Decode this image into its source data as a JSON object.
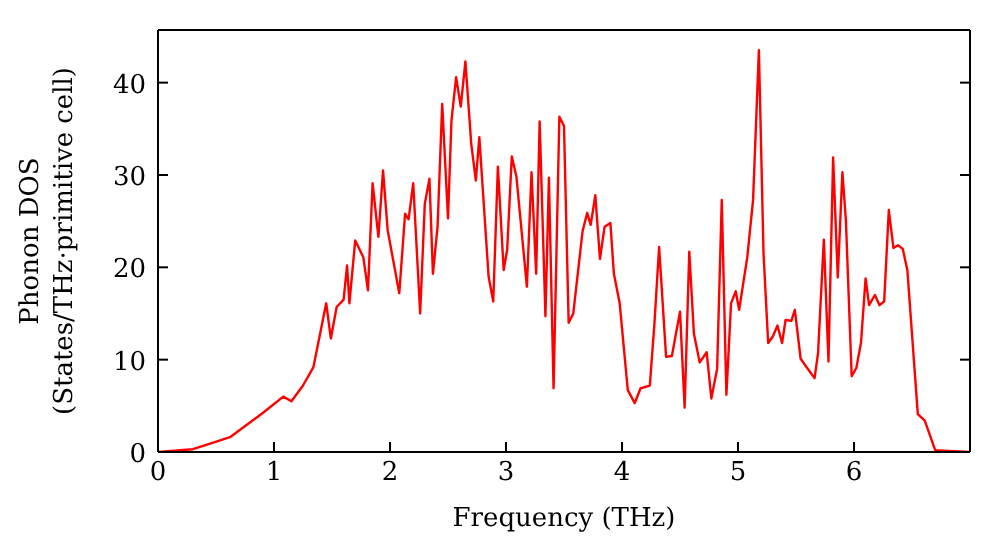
{
  "chart_data": {
    "type": "line",
    "xlabel": "Frequency (THz)",
    "ylabel": "Phonon DOS\n(States/THz·primitive cell)",
    "xlim": [
      0,
      7
    ],
    "xticks": [
      0,
      1,
      2,
      3,
      4,
      5,
      6
    ],
    "ylim": [
      0,
      45.7
    ],
    "yticks": [
      0,
      10,
      20,
      30,
      40
    ],
    "marker": "none",
    "line_style": "solid",
    "series": [
      {
        "color": "#ff0000",
        "x": [
          0,
          0.3,
          0.45,
          0.62,
          0.9,
          1.08,
          1.15,
          1.25,
          1.34,
          1.45,
          1.49,
          1.54,
          1.6,
          1.63,
          1.65,
          1.7,
          1.77,
          1.81,
          1.85,
          1.9,
          1.94,
          1.98,
          2.08,
          2.13,
          2.16,
          2.2,
          2.26,
          2.3,
          2.34,
          2.37,
          2.41,
          2.45,
          2.5,
          2.53,
          2.57,
          2.61,
          2.65,
          2.7,
          2.74,
          2.77,
          2.85,
          2.89,
          2.93,
          2.98,
          3.01,
          3.05,
          3.09,
          3.18,
          3.22,
          3.26,
          3.29,
          3.34,
          3.37,
          3.41,
          3.46,
          3.5,
          3.54,
          3.58,
          3.66,
          3.7,
          3.73,
          3.77,
          3.81,
          3.85,
          3.9,
          3.93,
          3.98,
          4.05,
          4.11,
          4.16,
          4.24,
          4.28,
          4.32,
          4.38,
          4.43,
          4.5,
          4.54,
          4.58,
          4.62,
          4.67,
          4.73,
          4.77,
          4.82,
          4.86,
          4.9,
          4.94,
          4.98,
          5.01,
          5.08,
          5.13,
          5.18,
          5.22,
          5.26,
          5.3,
          5.34,
          5.38,
          5.41,
          5.46,
          5.49,
          5.54,
          5.59,
          5.66,
          5.69,
          5.74,
          5.78,
          5.82,
          5.86,
          5.9,
          5.93,
          5.98,
          6.02,
          6.06,
          6.1,
          6.13,
          6.18,
          6.22,
          6.26,
          6.3,
          6.34,
          6.38,
          6.42,
          6.46,
          6.55,
          6.61,
          6.7,
          6.99
        ],
        "values": [
          0,
          0.3,
          0.9,
          1.6,
          4.2,
          6.0,
          5.5,
          7.2,
          9.2,
          16.1,
          12.3,
          15.7,
          16.5,
          20.2,
          16.1,
          22.9,
          21.1,
          17.5,
          29.1,
          23.3,
          30.5,
          24,
          17.2,
          25.8,
          25.2,
          29.1,
          15.0,
          26.9,
          29.6,
          19.3,
          24.4,
          37.7,
          25.3,
          35.9,
          40.6,
          37.4,
          42.3,
          33.4,
          29.4,
          34.1,
          19.0,
          16.3,
          30.9,
          19.7,
          21.9,
          32.0,
          29.8,
          17.9,
          30.3,
          19.3,
          35.8,
          14.7,
          29.7,
          6.9,
          36.3,
          35.3,
          14.0,
          15.0,
          23.9,
          25.9,
          24.6,
          27.8,
          20.9,
          24.4,
          24.8,
          19.3,
          16.1,
          6.7,
          5.3,
          6.9,
          7.2,
          14.0,
          22.2,
          10.3,
          10.4,
          15.2,
          4.8,
          21.7,
          12.8,
          9.7,
          10.8,
          5.8,
          9.0,
          27.3,
          6.2,
          16.1,
          17.4,
          15.4,
          21.1,
          27.3,
          43.5,
          21.5,
          11.8,
          12.5,
          13.7,
          11.8,
          14.3,
          14.2,
          15.4,
          10.1,
          9.2,
          8.0,
          10.7,
          23.0,
          9.8,
          31.9,
          18.9,
          30.3,
          25.1,
          8.2,
          9.1,
          11.8,
          18.8,
          15.9,
          17.0,
          15.9,
          16.3,
          26.2,
          22.1,
          22.4,
          22.0,
          19.7,
          4.1,
          3.4,
          0.2,
          0
        ]
      }
    ]
  }
}
